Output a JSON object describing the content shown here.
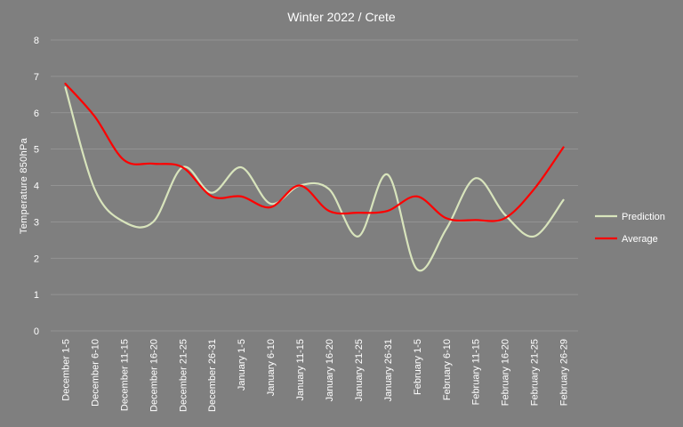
{
  "chart_data": {
    "type": "line",
    "title": "Winter 2022 / Crete",
    "xlabel": "",
    "ylabel": "Temperature 850hPa",
    "ylim": [
      0,
      8
    ],
    "yticks": [
      0,
      1,
      2,
      3,
      4,
      5,
      6,
      7,
      8
    ],
    "grid": true,
    "smooth": true,
    "legend_position": "right",
    "categories": [
      "December 1-5",
      "December 6-10",
      "December 11-15",
      "December 16-20",
      "December 21-25",
      "December 26-31",
      "January 1-5",
      "January 6-10",
      "January 11-15",
      "January 16-20",
      "January 21-25",
      "January 26-31",
      "February 1-5",
      "February 6-10",
      "February 11-15",
      "February 16-20",
      "February 21-25",
      "February 26-29"
    ],
    "series": [
      {
        "name": "Prediction",
        "color": "#d8e4bc",
        "values": [
          6.7,
          3.9,
          3.0,
          3.0,
          4.5,
          3.8,
          4.5,
          3.5,
          4.0,
          3.9,
          2.6,
          4.3,
          1.7,
          2.8,
          4.2,
          3.2,
          2.6,
          3.6
        ]
      },
      {
        "name": "Average",
        "color": "#ff0000",
        "values": [
          6.8,
          5.9,
          4.7,
          4.6,
          4.5,
          3.7,
          3.7,
          3.4,
          4.0,
          3.3,
          3.25,
          3.3,
          3.7,
          3.1,
          3.05,
          3.1,
          3.9,
          5.05
        ]
      }
    ]
  }
}
